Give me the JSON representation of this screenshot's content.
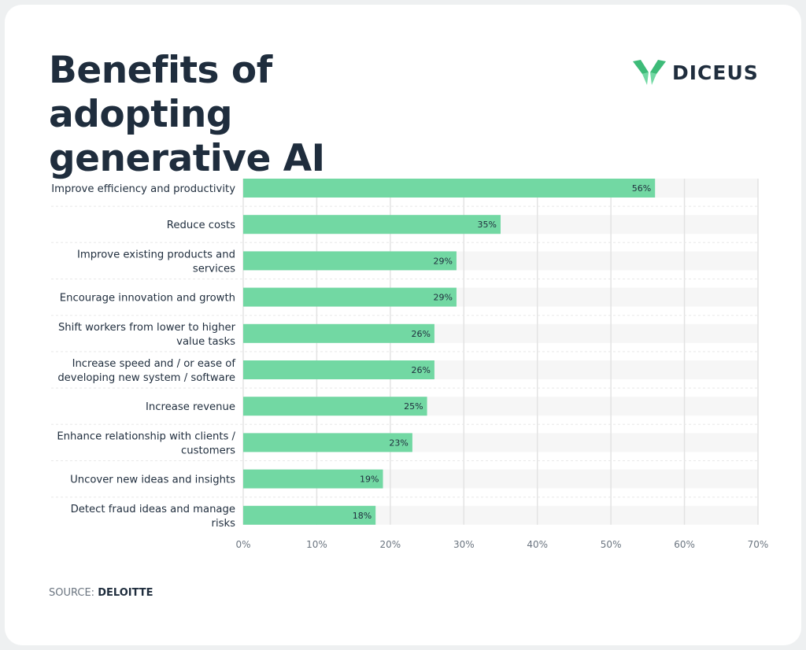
{
  "header": {
    "title": "Benefits of adopting generative AI",
    "logo_text": "DICEUS"
  },
  "footer": {
    "source_label": "SOURCE:",
    "source_value": "DELOITTE"
  },
  "colors": {
    "bar": "#72d8a3",
    "band": "#f6f6f6",
    "text": "#1f2d3d",
    "logo_green": "#3dbb78"
  },
  "chart_data": {
    "type": "bar",
    "orientation": "horizontal",
    "categories": [
      [
        "Improve efficiency and productivity"
      ],
      [
        "Reduce costs"
      ],
      [
        "Improve existing products and",
        "services"
      ],
      [
        "Encourage innovation and growth"
      ],
      [
        "Shift workers from lower to higher",
        "value tasks"
      ],
      [
        "Increase speed and / or ease of",
        "developing new system / software"
      ],
      [
        "Increase revenue"
      ],
      [
        "Enhance relationship with clients /",
        "customers"
      ],
      [
        "Uncover new ideas and insights"
      ],
      [
        "Detect fraud ideas and manage",
        "risks"
      ]
    ],
    "values": [
      56,
      35,
      29,
      29,
      26,
      26,
      25,
      23,
      19,
      18
    ],
    "data_labels": [
      "56%",
      "35%",
      "29%",
      "29%",
      "26%",
      "26%",
      "25%",
      "23%",
      "19%",
      "18%"
    ],
    "xlim": [
      0,
      70
    ],
    "xticks": [
      "0%",
      "10%",
      "20%",
      "30%",
      "40%",
      "50%",
      "60%",
      "70%"
    ],
    "grid": true,
    "title": "Benefits of adopting generative AI"
  }
}
